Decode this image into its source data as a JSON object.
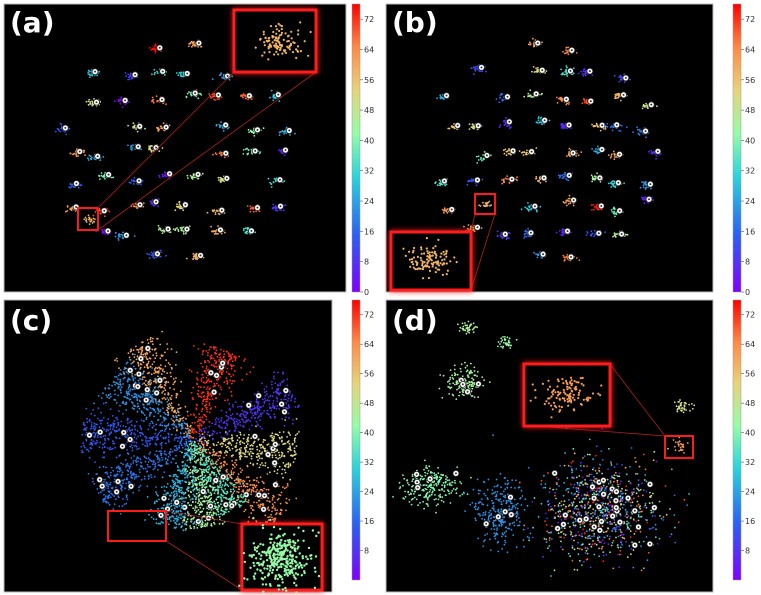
{
  "chart_data": [
    {
      "panel": "(a)",
      "type": "scatter",
      "clusters": 75,
      "cluster_layout": "separate",
      "colorbar": {
        "min": 0,
        "max": 76,
        "ticks": [
          0,
          8,
          16,
          24,
          32,
          40,
          48,
          56,
          64,
          72
        ],
        "colormap": "rainbow"
      },
      "highlight": {
        "label_value": 58,
        "inset": "top-right"
      }
    },
    {
      "panel": "(b)",
      "type": "scatter",
      "clusters": 75,
      "cluster_layout": "separate",
      "colorbar": {
        "min": 0,
        "max": 76,
        "ticks": [
          0,
          8,
          16,
          24,
          32,
          40,
          48,
          56,
          64,
          72
        ],
        "colormap": "rainbow"
      },
      "highlight": {
        "label_value": 58,
        "inset": "bottom-left"
      }
    },
    {
      "panel": "(c)",
      "type": "scatter",
      "cluster_layout": "radial petals",
      "petal_values": [
        60,
        72,
        8,
        52,
        64,
        36,
        44,
        26,
        18,
        14,
        22
      ],
      "colorbar": {
        "min": 0,
        "max": 76,
        "ticks": [
          8,
          16,
          24,
          32,
          40,
          48,
          56,
          64,
          72
        ],
        "colormap": "rainbow"
      },
      "highlight": {
        "label_value": 42,
        "inset": "bottom-right"
      }
    },
    {
      "panel": "(d)",
      "type": "scatter",
      "cluster_layout": "few separated groups + mixed blob",
      "group_values": [
        46,
        42,
        44,
        50,
        40,
        22,
        60
      ],
      "colorbar": {
        "min": 0,
        "max": 76,
        "ticks": [
          8,
          16,
          24,
          32,
          40,
          48,
          56,
          64,
          72
        ],
        "colormap": "rainbow"
      },
      "highlight": {
        "label_value": 62,
        "inset": "top-center"
      }
    }
  ]
}
